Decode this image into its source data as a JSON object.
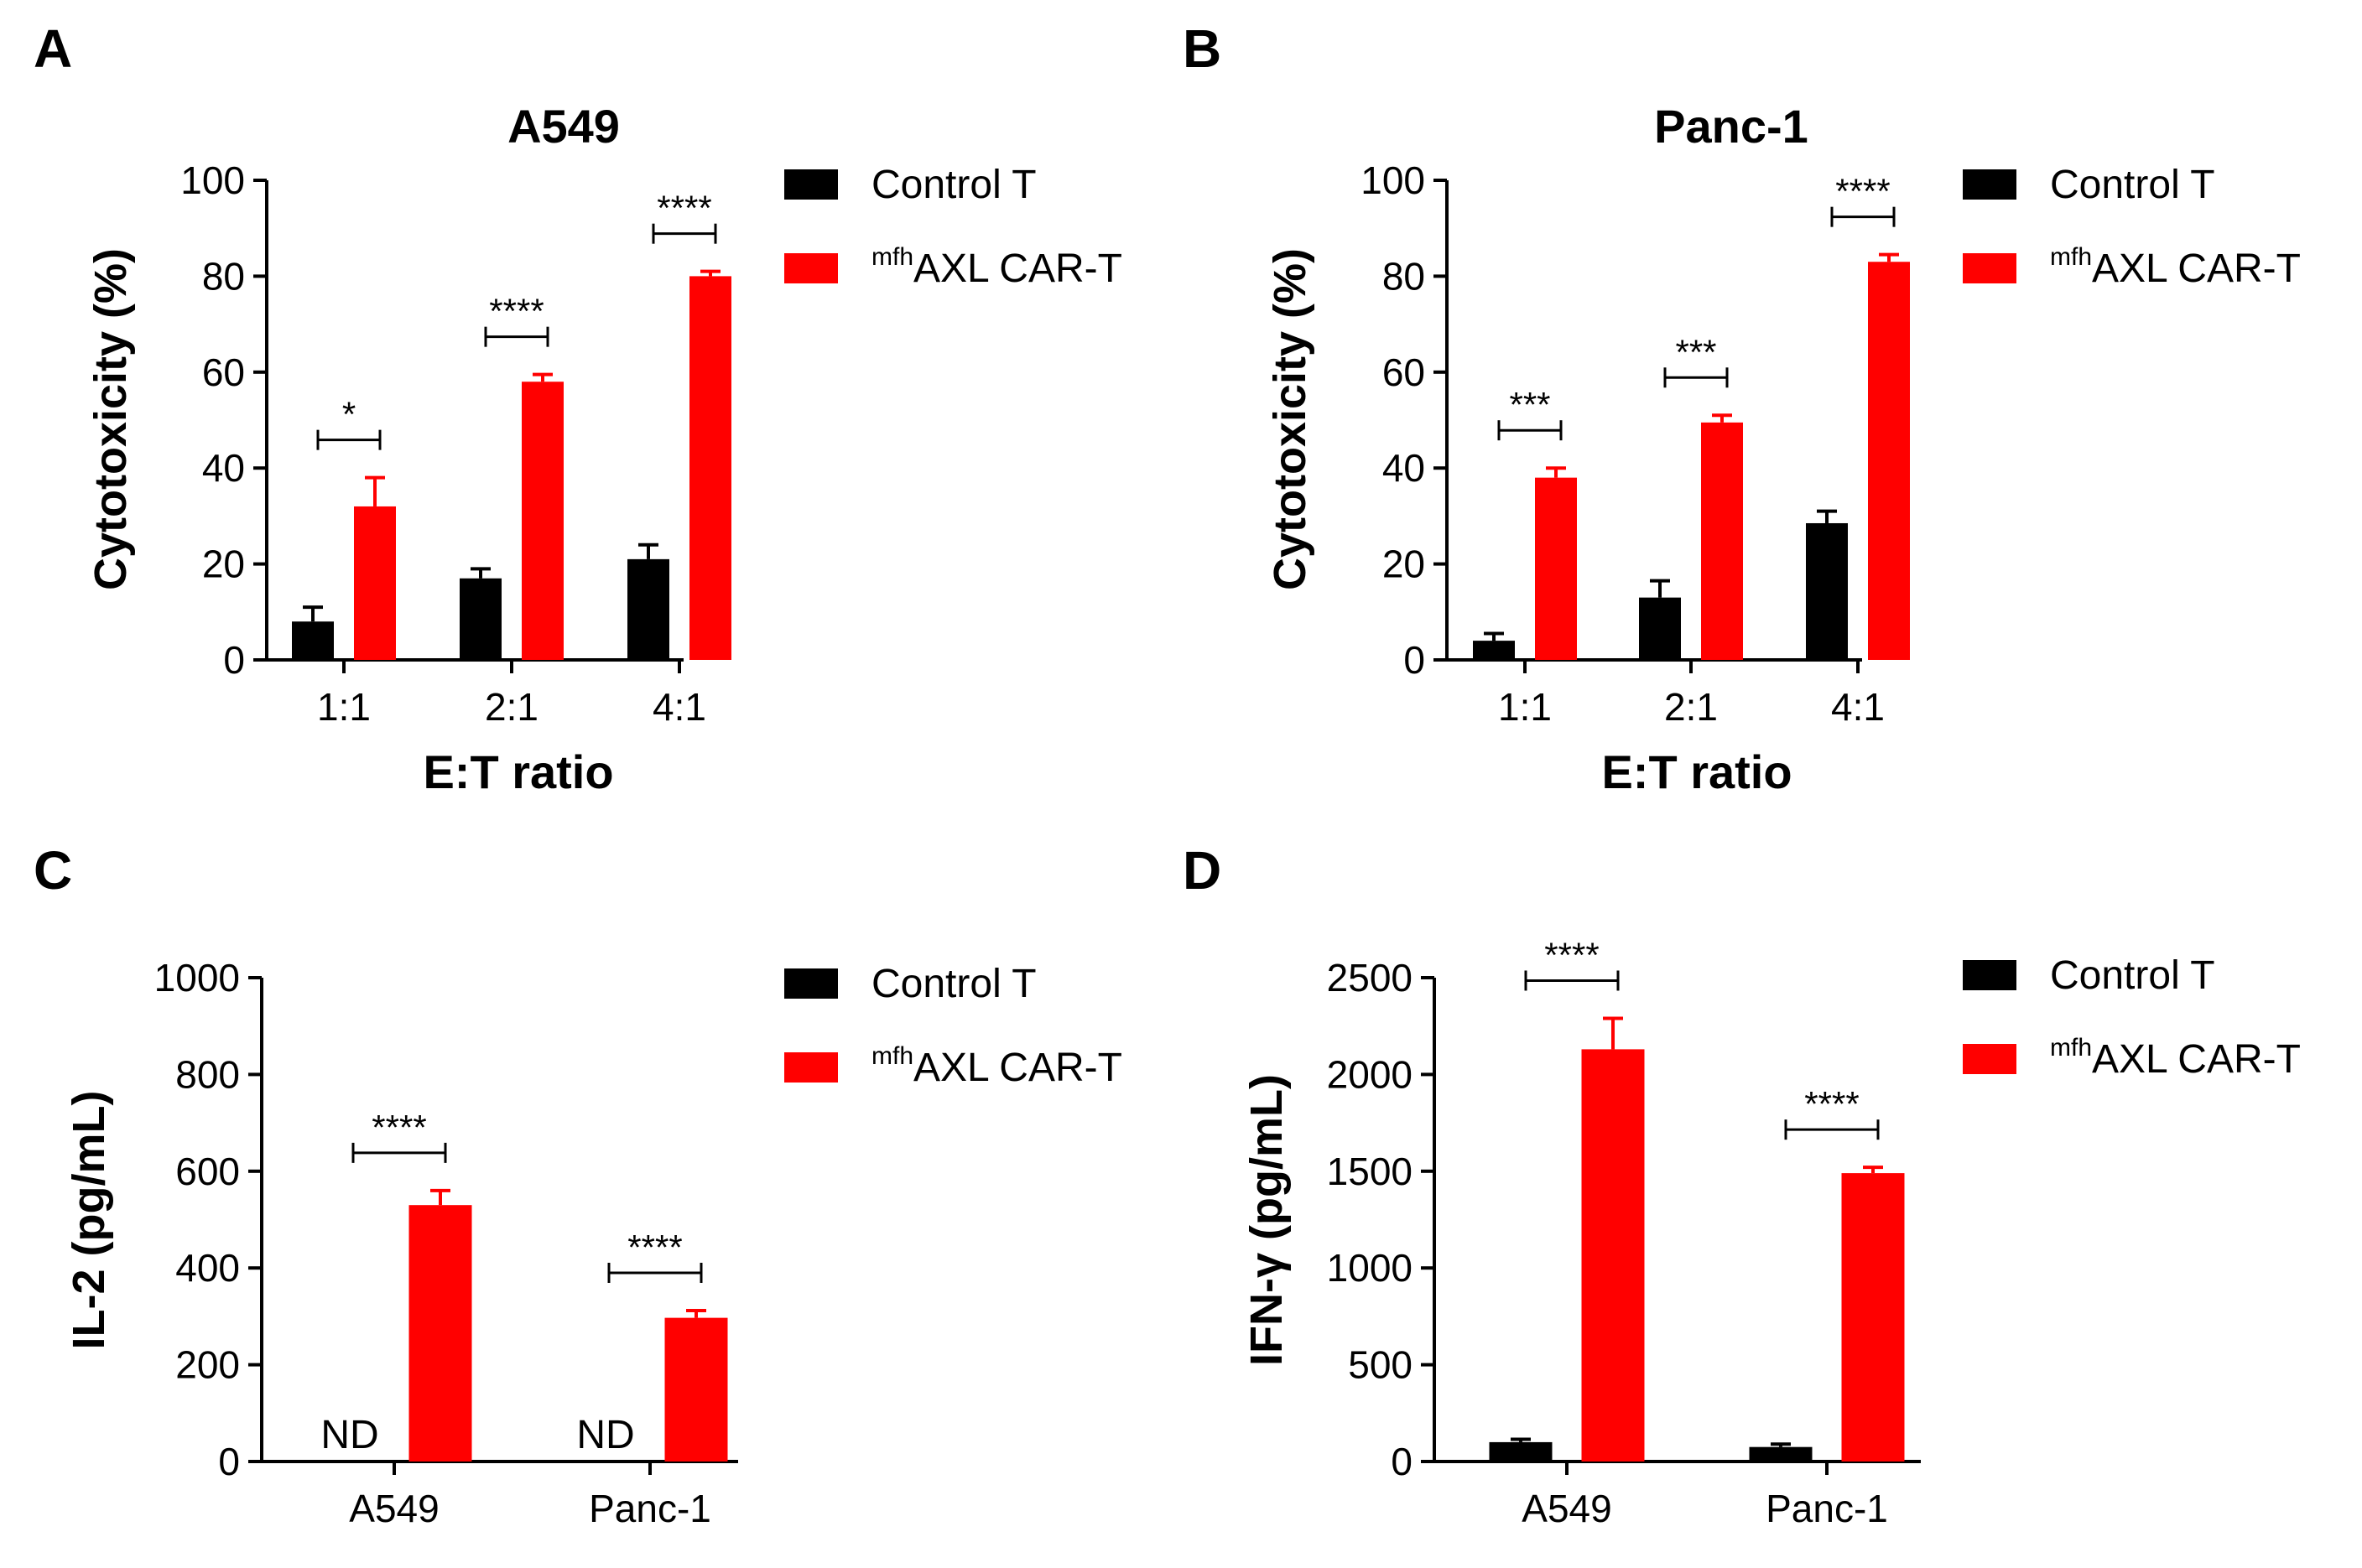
{
  "chart_data": [
    {
      "panel": "A",
      "type": "bar",
      "title": "A549",
      "xlabel": "E:T ratio",
      "ylabel": "Cytotoxicity (%)",
      "ylim": [
        0,
        100
      ],
      "yticks": [
        "0",
        "20",
        "40",
        "60",
        "80",
        "100"
      ],
      "categories": [
        "1:1",
        "2:1",
        "4:1"
      ],
      "series": [
        {
          "name": "Control T",
          "values": [
            8,
            17,
            21
          ],
          "errors": [
            3,
            2,
            3
          ],
          "color": "#000000"
        },
        {
          "name": "AXL CAR-T",
          "name_superscript": "mfh",
          "values": [
            32,
            58,
            80
          ],
          "errors": [
            6,
            1.5,
            1
          ],
          "color": "#ff0000"
        }
      ],
      "significance": [
        "*",
        "****",
        "****"
      ],
      "legend": "right"
    },
    {
      "panel": "B",
      "type": "bar",
      "title": "Panc-1",
      "xlabel": "E:T ratio",
      "ylabel": "Cytotoxicity (%)",
      "ylim": [
        0,
        100
      ],
      "yticks": [
        "0",
        "20",
        "40",
        "60",
        "80",
        "100"
      ],
      "categories": [
        "1:1",
        "2:1",
        "4:1"
      ],
      "series": [
        {
          "name": "Control T",
          "values": [
            4,
            13,
            28.5
          ],
          "errors": [
            1.5,
            3.5,
            2.5
          ],
          "color": "#000000"
        },
        {
          "name": "AXL CAR-T",
          "name_superscript": "mfh",
          "values": [
            38,
            49.5,
            83
          ],
          "errors": [
            2,
            1.5,
            1.5
          ],
          "color": "#ff0000"
        }
      ],
      "significance": [
        "***",
        "***",
        "****"
      ],
      "legend": "right"
    },
    {
      "panel": "C",
      "type": "bar",
      "title": "",
      "xlabel": "",
      "ylabel": "IL-2 (pg/mL)",
      "ylim": [
        0,
        1000
      ],
      "yticks": [
        "0",
        "200",
        "400",
        "600",
        "800",
        "1000"
      ],
      "categories": [
        "A549",
        "Panc-1"
      ],
      "series": [
        {
          "name": "Control T",
          "values": [
            null,
            null
          ],
          "errors": [
            0,
            0
          ],
          "labels": [
            "ND",
            "ND"
          ],
          "color": "#000000"
        },
        {
          "name": "AXL CAR-T",
          "name_superscript": "mfh",
          "values": [
            530,
            297
          ],
          "errors": [
            30,
            15
          ],
          "color": "#ff0000"
        }
      ],
      "significance": [
        "****",
        "****"
      ],
      "legend": "right"
    },
    {
      "panel": "D",
      "type": "bar",
      "title": "",
      "xlabel": "",
      "ylabel": "IFN-γ (pg/mL)",
      "ylim": [
        0,
        2500
      ],
      "yticks": [
        "0",
        "500",
        "1000",
        "1500",
        "2000",
        "2500"
      ],
      "categories": [
        "A549",
        "Panc-1"
      ],
      "series": [
        {
          "name": "Control T",
          "values": [
            100,
            75
          ],
          "errors": [
            15,
            15
          ],
          "color": "#000000"
        },
        {
          "name": "AXL CAR-T",
          "name_superscript": "mfh",
          "values": [
            2130,
            1490
          ],
          "errors": [
            160,
            30
          ],
          "color": "#ff0000"
        }
      ],
      "significance": [
        "****",
        "****"
      ],
      "legend": "right"
    }
  ]
}
